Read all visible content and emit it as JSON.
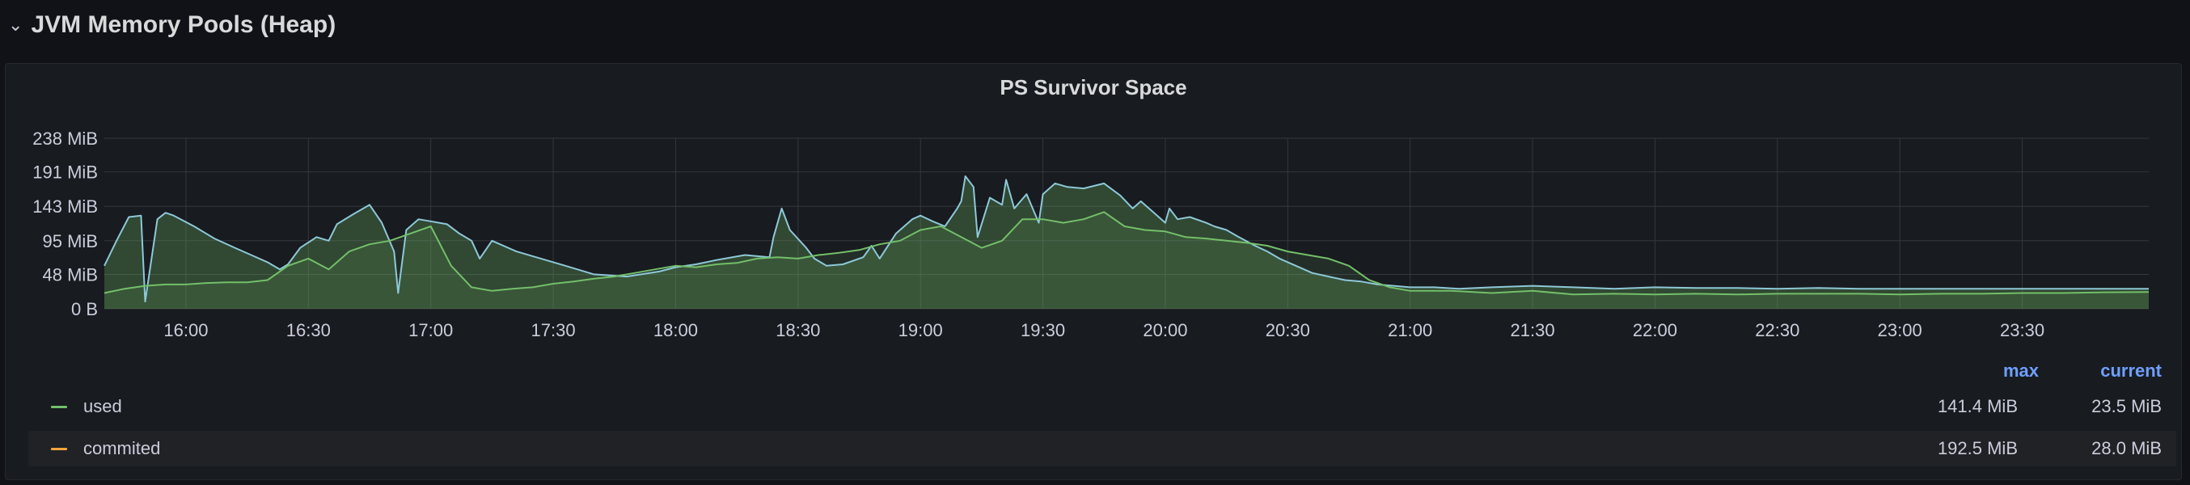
{
  "row": {
    "chevron": "⌄",
    "title": "JVM Memory Pools (Heap)"
  },
  "panel": {
    "title": "PS Survivor Space"
  },
  "legend": {
    "headers": {
      "max": "max",
      "current": "current"
    },
    "rows": [
      {
        "name": "used",
        "color": "#73bf69",
        "max": "141.4 MiB",
        "current": "23.5 MiB"
      },
      {
        "name": "commited",
        "color": "#f2a53a",
        "max": "192.5 MiB",
        "current": "28.0 MiB"
      }
    ]
  },
  "chart_data": {
    "type": "area",
    "y_ticks": [
      "0 B",
      "48 MiB",
      "95 MiB",
      "143 MiB",
      "191 MiB",
      "238 MiB"
    ],
    "y_tick_values": [
      0,
      48,
      95,
      143,
      191,
      238
    ],
    "ylim": [
      0,
      238
    ],
    "x_ticks": [
      "16:00",
      "16:30",
      "17:00",
      "17:30",
      "18:00",
      "18:30",
      "19:00",
      "19:30",
      "20:00",
      "20:30",
      "21:00",
      "21:30",
      "22:00",
      "22:30",
      "23:00",
      "23:30"
    ],
    "x_tick_minutes": [
      960,
      990,
      1020,
      1050,
      1080,
      1110,
      1140,
      1170,
      1200,
      1230,
      1260,
      1290,
      1320,
      1350,
      1380,
      1410
    ],
    "xlim_minutes": [
      940,
      1441
    ],
    "grid": true,
    "series": [
      {
        "name": "commited",
        "color": "#8ec8d8",
        "x": [
          940,
          943,
          946,
          949,
          950,
          953,
          955,
          957,
          962,
          967,
          972,
          976,
          980,
          983,
          985,
          988,
          992,
          995,
          997,
          1001,
          1005,
          1008,
          1011,
          1012,
          1014,
          1017,
          1020,
          1024,
          1027,
          1030,
          1032,
          1035,
          1041,
          1047,
          1053,
          1060,
          1068,
          1076,
          1080,
          1085,
          1090,
          1097,
          1103,
          1104,
          1106,
          1108,
          1112,
          1114,
          1117,
          1121,
          1126,
          1128,
          1130,
          1134,
          1138,
          1140,
          1143,
          1146,
          1149,
          1150,
          1151,
          1153,
          1154,
          1157,
          1160,
          1161,
          1163,
          1166,
          1169,
          1170,
          1173,
          1176,
          1180,
          1185,
          1189,
          1192,
          1194,
          1197,
          1200,
          1201,
          1203,
          1206,
          1210,
          1212,
          1215,
          1218,
          1222,
          1225,
          1228,
          1232,
          1236,
          1240,
          1244,
          1248,
          1252,
          1256,
          1260,
          1266,
          1272,
          1280,
          1290,
          1300,
          1310,
          1320,
          1330,
          1340,
          1350,
          1360,
          1370,
          1380,
          1390,
          1400,
          1410,
          1420,
          1430,
          1436,
          1441
        ],
        "values": [
          60,
          95,
          128,
          130,
          10,
          125,
          134,
          130,
          115,
          98,
          85,
          75,
          65,
          55,
          62,
          85,
          100,
          95,
          118,
          132,
          145,
          120,
          80,
          22,
          110,
          125,
          122,
          118,
          105,
          95,
          70,
          95,
          80,
          70,
          60,
          48,
          45,
          52,
          58,
          62,
          68,
          75,
          72,
          100,
          140,
          110,
          85,
          70,
          60,
          62,
          72,
          88,
          70,
          105,
          125,
          130,
          122,
          115,
          140,
          150,
          185,
          170,
          100,
          155,
          145,
          180,
          140,
          160,
          120,
          160,
          175,
          170,
          168,
          175,
          158,
          140,
          150,
          135,
          120,
          140,
          125,
          128,
          120,
          115,
          110,
          100,
          88,
          80,
          70,
          60,
          50,
          45,
          40,
          38,
          34,
          32,
          30,
          30,
          28,
          30,
          32,
          30,
          28,
          30,
          29,
          29,
          28,
          29,
          28,
          28,
          28,
          28,
          28,
          28,
          28,
          28,
          28
        ]
      },
      {
        "name": "used",
        "color": "#73bf69",
        "x": [
          940,
          945,
          950,
          955,
          960,
          965,
          970,
          975,
          980,
          985,
          990,
          995,
          1000,
          1005,
          1010,
          1015,
          1020,
          1025,
          1030,
          1035,
          1040,
          1045,
          1050,
          1055,
          1060,
          1065,
          1070,
          1075,
          1080,
          1085,
          1090,
          1095,
          1100,
          1105,
          1110,
          1115,
          1120,
          1125,
          1130,
          1135,
          1140,
          1145,
          1150,
          1155,
          1160,
          1165,
          1170,
          1175,
          1180,
          1185,
          1190,
          1195,
          1200,
          1205,
          1210,
          1215,
          1220,
          1225,
          1230,
          1235,
          1240,
          1245,
          1250,
          1255,
          1260,
          1270,
          1280,
          1290,
          1300,
          1310,
          1320,
          1330,
          1340,
          1350,
          1360,
          1370,
          1380,
          1390,
          1400,
          1410,
          1420,
          1430,
          1441
        ],
        "values": [
          22,
          28,
          32,
          34,
          34,
          36,
          37,
          37,
          40,
          60,
          70,
          55,
          80,
          90,
          95,
          105,
          115,
          60,
          30,
          25,
          28,
          30,
          35,
          38,
          42,
          45,
          50,
          55,
          60,
          58,
          62,
          64,
          70,
          72,
          70,
          75,
          78,
          82,
          90,
          95,
          110,
          115,
          100,
          85,
          95,
          125,
          125,
          120,
          125,
          135,
          115,
          110,
          108,
          100,
          98,
          95,
          92,
          88,
          80,
          75,
          70,
          60,
          40,
          30,
          25,
          25,
          22,
          25,
          20,
          21,
          20,
          21,
          20,
          21,
          21,
          21,
          20,
          21,
          21,
          22,
          22,
          23,
          23.5
        ]
      }
    ]
  }
}
